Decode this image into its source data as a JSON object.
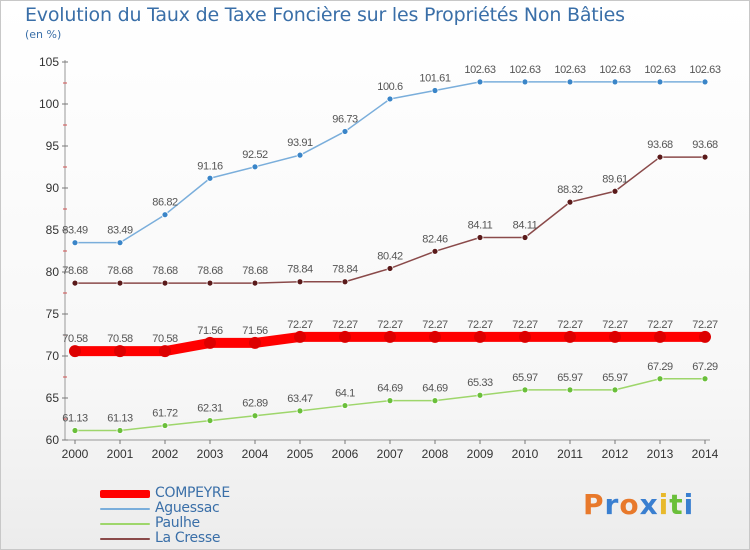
{
  "header": {
    "title": "Evolution du Taux de Taxe Foncière sur les Propriétés Non Bâties",
    "subtitle": "(en %)"
  },
  "logo": {
    "text": "Proxiti",
    "letters": [
      "P",
      "r",
      "o",
      "x",
      "i",
      "t",
      "i"
    ],
    "colors": [
      "#e8792b",
      "#3a7fd0",
      "#e8792b",
      "#3a7fd0",
      "#e8b92b",
      "#6abf3a",
      "#3a7fd0"
    ]
  },
  "chart_data": {
    "type": "line",
    "title": "Evolution du Taux de Taxe Foncière sur les Propriétés Non Bâties",
    "ylabel": "(en %)",
    "xlabel": "",
    "categories": [
      "2000",
      "2001",
      "2002",
      "2003",
      "2004",
      "2005",
      "2006",
      "2007",
      "2008",
      "2009",
      "2010",
      "2011",
      "2012",
      "2013",
      "2014"
    ],
    "ylim": [
      60,
      105
    ],
    "yticks": [
      "60",
      "65",
      "70",
      "75",
      "80",
      "85",
      "90",
      "95",
      "100",
      "105"
    ],
    "grid": false,
    "legend_position": "bottom-left",
    "series": [
      {
        "name": "Aguessac",
        "color": "#7aaedb",
        "marker": "#3a85c8",
        "values": [
          83.49,
          83.49,
          86.82,
          91.16,
          92.52,
          93.91,
          96.73,
          100.6,
          101.61,
          102.63,
          102.63,
          102.63,
          102.63,
          102.63,
          102.63
        ],
        "labels": [
          "83.49",
          "83.49",
          "86.82",
          "91.16",
          "92.52",
          "93.91",
          "96.73",
          "100.6",
          "101.61",
          "102.63",
          "102.63",
          "102.63",
          "102.63",
          "102.63",
          "102.63"
        ]
      },
      {
        "name": "La Cresse",
        "color": "#8a4a4a",
        "marker": "#5a1a1a",
        "values": [
          78.68,
          78.68,
          78.68,
          78.68,
          78.68,
          78.84,
          78.84,
          80.42,
          82.46,
          84.11,
          84.11,
          88.32,
          89.61,
          93.68,
          93.68
        ],
        "labels": [
          "78.68",
          "78.68",
          "78.68",
          "78.68",
          "78.68",
          "78.84",
          "78.84",
          "80.42",
          "82.46",
          "84.11",
          "84.11",
          "88.32",
          "89.61",
          "93.68",
          "93.68"
        ]
      },
      {
        "name": "COMPEYRE",
        "color": "#ff0000",
        "marker": "#dd0000",
        "values": [
          70.58,
          70.58,
          70.58,
          71.56,
          71.56,
          72.27,
          72.27,
          72.27,
          72.27,
          72.27,
          72.27,
          72.27,
          72.27,
          72.27,
          72.27
        ],
        "labels": [
          "70.58",
          "70.58",
          "70.58",
          "71.56",
          "71.56",
          "72.27",
          "72.27",
          "72.27",
          "72.27",
          "72.27",
          "72.27",
          "72.27",
          "72.27",
          "72.27",
          "72.27"
        ]
      },
      {
        "name": "Paulhe",
        "color": "#9ed66b",
        "marker": "#6abf3a",
        "values": [
          61.13,
          61.13,
          61.72,
          62.31,
          62.89,
          63.47,
          64.1,
          64.69,
          64.69,
          65.33,
          65.97,
          65.97,
          65.97,
          67.29,
          67.29
        ],
        "labels": [
          "61.13",
          "61.13",
          "61.72",
          "62.31",
          "62.89",
          "63.47",
          "64.1",
          "64.69",
          "64.69",
          "65.33",
          "65.97",
          "65.97",
          "65.97",
          "67.29",
          "67.29"
        ]
      }
    ],
    "legend": [
      "COMPEYRE",
      "Aguessac",
      "Paulhe",
      "La Cresse"
    ]
  }
}
